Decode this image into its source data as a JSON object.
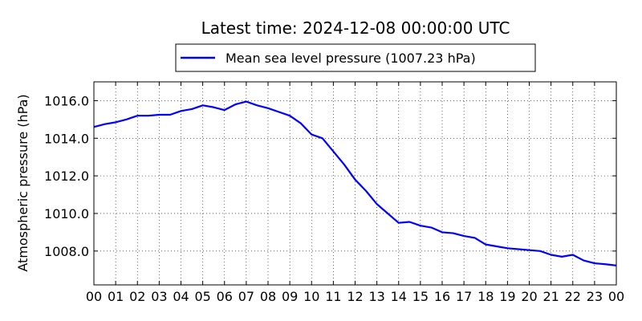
{
  "chart_data": {
    "type": "line",
    "title": "Latest time: 2024-12-08 00:00:00 UTC",
    "xlabel": "",
    "ylabel": "Atmospheric pressure (hPa)",
    "xlim": [
      0,
      24
    ],
    "ylim": [
      1006.2,
      1017.0
    ],
    "x_tick_values": [
      0,
      1,
      2,
      3,
      4,
      5,
      6,
      7,
      8,
      9,
      10,
      11,
      12,
      13,
      14,
      15,
      16,
      17,
      18,
      19,
      20,
      21,
      22,
      23,
      24
    ],
    "x_tick_labels": [
      "00",
      "01",
      "02",
      "03",
      "04",
      "05",
      "06",
      "07",
      "08",
      "09",
      "10",
      "11",
      "12",
      "13",
      "14",
      "15",
      "16",
      "17",
      "18",
      "19",
      "20",
      "21",
      "22",
      "23",
      "00"
    ],
    "y_tick_values": [
      1008.0,
      1010.0,
      1012.0,
      1014.0,
      1016.0
    ],
    "y_tick_labels": [
      "1008.0",
      "1010.0",
      "1012.0",
      "1014.0",
      "1016.0"
    ],
    "grid": true,
    "legend_position": "top-center",
    "series": [
      {
        "name": "Mean sea level pressure (1007.23 hPa)",
        "color": "#0000ff",
        "x": [
          0,
          0.5,
          1,
          1.5,
          2,
          2.5,
          3,
          3.5,
          4,
          4.5,
          5,
          5.5,
          6,
          6.5,
          7,
          7.5,
          8,
          8.5,
          9,
          9.5,
          10,
          10.5,
          11,
          11.5,
          12,
          12.5,
          13,
          13.5,
          14,
          14.5,
          15,
          15.5,
          16,
          16.5,
          17,
          17.5,
          18,
          18.5,
          19,
          19.5,
          20,
          20.5,
          21,
          21.5,
          22,
          22.5,
          23,
          23.5,
          24
        ],
        "y": [
          1014.6,
          1014.75,
          1014.85,
          1015.0,
          1015.2,
          1015.2,
          1015.25,
          1015.25,
          1015.45,
          1015.55,
          1015.75,
          1015.65,
          1015.5,
          1015.8,
          1015.95,
          1015.75,
          1015.6,
          1015.4,
          1015.2,
          1014.8,
          1014.2,
          1014.0,
          1013.3,
          1012.6,
          1011.8,
          1011.2,
          1010.5,
          1010.0,
          1009.5,
          1009.55,
          1009.35,
          1009.25,
          1009.0,
          1008.95,
          1008.8,
          1008.7,
          1008.35,
          1008.25,
          1008.15,
          1008.1,
          1008.05,
          1008.0,
          1007.8,
          1007.7,
          1007.8,
          1007.5,
          1007.35,
          1007.3,
          1007.23
        ]
      }
    ]
  }
}
